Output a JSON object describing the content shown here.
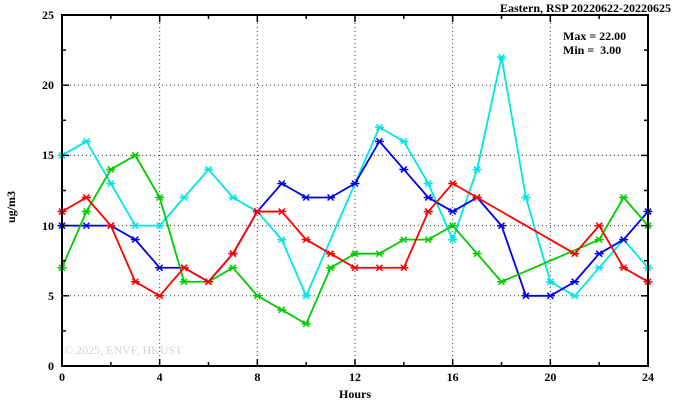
{
  "header": {
    "title": "Eastern, RSP 20220622-20220625"
  },
  "info_box": {
    "max_label": "Max = 22.00",
    "min_label": "Min =  3.00"
  },
  "axes": {
    "x_label": "Hours",
    "y_label": "ug/m3"
  },
  "watermark": "© 2025, ENVF, HKUST",
  "colors": {
    "border": "#000000",
    "grid": "#3a3a3a",
    "background": "#ffffff",
    "watermark_text": "#d4d4d4"
  },
  "chart_data": {
    "type": "line",
    "title": "Eastern, RSP 20220622-20220625",
    "xlabel": "Hours",
    "ylabel": "ug/m3",
    "xlim": [
      0,
      24
    ],
    "ylim": [
      0,
      25
    ],
    "grid": true,
    "legend_position": "none",
    "x_major_ticks": [
      0,
      4,
      8,
      12,
      16,
      20,
      24
    ],
    "x_minor_ticks": [
      2,
      6,
      10,
      14,
      18,
      22
    ],
    "y_major_ticks": [
      0,
      5,
      10,
      15,
      20,
      25
    ],
    "y_minor_ticks": [
      2.5,
      7.5,
      12.5,
      17.5,
      22.5
    ],
    "grid_x": [
      4,
      8,
      12,
      16,
      20
    ],
    "grid_y": [
      5,
      10,
      15,
      20
    ],
    "x": [
      0,
      1,
      2,
      3,
      4,
      5,
      6,
      7,
      8,
      9,
      10,
      11,
      12,
      13,
      14,
      15,
      16,
      17,
      18,
      19,
      20,
      21,
      22,
      23,
      24
    ],
    "series": [
      {
        "name": "series-cyan",
        "color": "#00e6e6",
        "values": [
          15,
          16,
          13,
          10,
          10,
          12,
          14,
          12,
          11,
          9,
          5,
          null,
          null,
          17,
          16,
          13,
          9,
          14,
          22,
          12,
          6,
          5,
          7,
          9,
          7
        ]
      },
      {
        "name": "series-blue",
        "color": "#0000ee",
        "values": [
          10,
          10,
          10,
          9,
          7,
          7,
          6,
          8,
          11,
          13,
          12,
          12,
          13,
          16,
          14,
          12,
          11,
          12,
          10,
          5,
          5,
          6,
          8,
          9,
          11
        ]
      },
      {
        "name": "series-green",
        "color": "#00cc00",
        "values": [
          7,
          11,
          14,
          15,
          12,
          6,
          6,
          7,
          5,
          4,
          3,
          7,
          8,
          8,
          9,
          9,
          10,
          8,
          6,
          null,
          null,
          null,
          9,
          12,
          10
        ]
      },
      {
        "name": "series-red",
        "color": "#ff0000",
        "values": [
          11,
          12,
          10,
          6,
          5,
          7,
          6,
          8,
          11,
          11,
          9,
          8,
          7,
          7,
          7,
          11,
          13,
          12,
          null,
          null,
          null,
          8,
          10,
          7,
          6
        ]
      }
    ],
    "annotations": {
      "max": 22.0,
      "min": 3.0
    }
  }
}
